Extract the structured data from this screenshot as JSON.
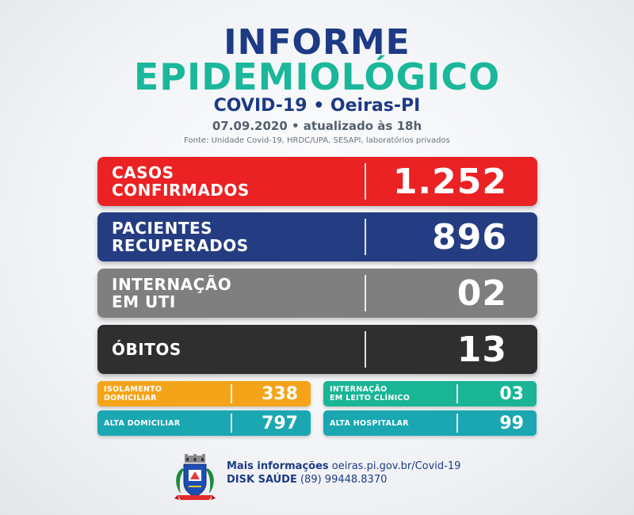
{
  "header": {
    "title_line1": "INFORME",
    "title_line2": "EPIDEMIOLÓGICO",
    "subtitle": "COVID-19 • Oeiras-PI",
    "date_text": "07.09.2020 • atualizado às 18h",
    "source": "Fonte: Unidade Covid-19, HRDC/UPA, SESAPI, laboratórios privados"
  },
  "stats": {
    "confirmed": {
      "label_line1": "CASOS",
      "label_line2": "CONFIRMADOS",
      "value": "1.252"
    },
    "recovered": {
      "label_line1": "PACIENTES",
      "label_line2": "RECUPERADOS",
      "value": "896"
    },
    "icu": {
      "label_line1": "INTERNAÇÃO",
      "label_line2": "EM UTI",
      "value": "02"
    },
    "deaths": {
      "label_line1": "ÓBITOS",
      "value": "13"
    }
  },
  "secondary": {
    "home_isolation": {
      "label_line1": "ISOLAMENTO",
      "label_line2": "DOMICILIAR",
      "value": "338"
    },
    "clinical_bed": {
      "label_line1": "INTERNAÇÃO",
      "label_line2": "EM LEITO CLÍNICO",
      "value": "03"
    },
    "home_discharge": {
      "label_line1": "ALTA DOMICILIAR",
      "value": "797"
    },
    "hospital_discharge": {
      "label_line1": "ALTA HOSPITALAR",
      "value": "99"
    }
  },
  "footer": {
    "info_label": "Mais informações",
    "info_url": "oeiras.pi.gov.br/Covid-19",
    "phone_label": "DISK SAÚDE",
    "phone_number": "(89) 99448.8370"
  },
  "colors": {
    "navy": "#1d3a85",
    "teal": "#1bb79b",
    "red": "#ea2224",
    "blue": "#243d82",
    "gray": "#7f7f7f",
    "dark": "#2f2f2f",
    "orange": "#f5a41a",
    "green": "#19b595",
    "cyan": "#1aa7b2"
  },
  "icons": {
    "logo": "municipal-coat-of-arms-icon"
  }
}
